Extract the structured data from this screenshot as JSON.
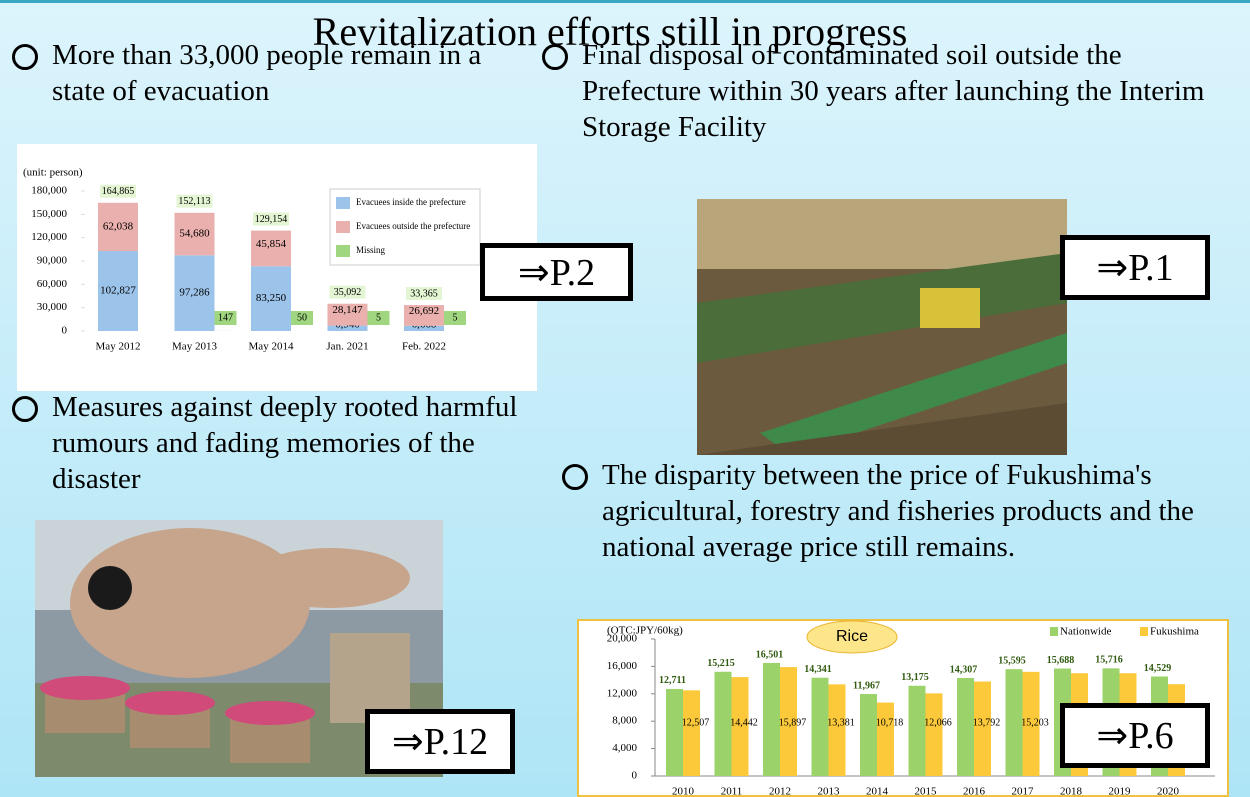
{
  "title": "Revitalization efforts still in progress",
  "bullets": [
    "More than 33,000 people remain in a state of evacuation",
    "Final disposal of contaminated soil outside the Prefecture within 30 years after launching the Interim Storage Facility",
    "Measures against deeply rooted harmful rumours and fading memories of the disaster",
    "The disparity between the price of Fukushima's agricultural, forestry and fisheries products and the national average price still remains."
  ],
  "links": [
    "⇒P.2",
    "⇒P.1",
    "⇒P.12",
    "⇒P.6"
  ],
  "chart_data": [
    {
      "type": "bar",
      "stacked": true,
      "unit_label": "(unit: person)",
      "categories": [
        "May 2012",
        "May 2013",
        "May 2014",
        "Jan. 2021",
        "Feb. 2022"
      ],
      "series": [
        {
          "name": "Evacuees  inside the prefecture",
          "color": "#9cc3ea",
          "values": [
            102827,
            97286,
            83250,
            6940,
            6668
          ],
          "value_labels": [
            "102,827",
            "97,286",
            "83,250",
            "6,940",
            "6,668"
          ]
        },
        {
          "name": "Evacuees  outside the prefecture",
          "color": "#eab0ae",
          "values": [
            62038,
            54680,
            45854,
            28147,
            26692
          ],
          "value_labels": [
            "62,038",
            "54,680",
            "45,854",
            "28,147",
            "26,692"
          ]
        },
        {
          "name": "Missing",
          "color": "#9fd67f",
          "values": [
            null,
            147,
            50,
            5,
            5
          ]
        }
      ],
      "totals": [
        164865,
        152113,
        129154,
        35092,
        33365
      ],
      "total_labels": [
        "164,865",
        "152,113",
        "129,154",
        "35,092",
        "33,365"
      ],
      "ylim": [
        0,
        180000
      ],
      "yticks": [
        0,
        {
          "value": 30000,
          "label": "30,000"
        },
        {
          "value": 60000,
          "label": "60,000"
        },
        {
          "value": 90000,
          "label": "90,000"
        },
        {
          "value": 120000,
          "label": "120,000"
        },
        {
          "value": 150000,
          "label": "150,000"
        },
        {
          "value": 180000,
          "label": "180,000"
        }
      ]
    },
    {
      "type": "bar",
      "title": "Rice",
      "unit_label": "(OTC:JPY/60kg)",
      "categories": [
        "2010",
        "2011",
        "2012",
        "2013",
        "2014",
        "2015",
        "2016",
        "2017",
        "2018",
        "2019",
        "2020"
      ],
      "series": [
        {
          "name": "Nationwide",
          "color": "#9bd36a",
          "values": [
            12711,
            15215,
            16501,
            14341,
            11967,
            13175,
            14307,
            15595,
            15688,
            15716,
            14529
          ],
          "value_labels": [
            "12,711",
            "15,215",
            "16,501",
            "14,341",
            "11,967",
            "13,175",
            "14,307",
            "15,595",
            "15,688",
            "15,716",
            "14,529"
          ]
        },
        {
          "name": "Fukushima",
          "color": "#fcc93a",
          "values": [
            12507,
            14442,
            15897,
            13381,
            10718,
            12066,
            13792,
            15203,
            15000,
            15000,
            13400
          ],
          "value_labels": [
            "12,507",
            "14,442",
            "15,897",
            "13,381",
            "10,718",
            "12,066",
            "13,792",
            "15,203",
            null,
            null,
            null
          ]
        }
      ],
      "ylim": [
        0,
        20000
      ],
      "yticks": [
        0,
        {
          "value": 4000,
          "label": "4,000"
        },
        {
          "value": 8000,
          "label": "8,000"
        },
        {
          "value": 12000,
          "label": "12,000"
        },
        {
          "value": 16000,
          "label": "16,000"
        },
        {
          "value": 20000,
          "label": "20,000"
        }
      ]
    }
  ]
}
